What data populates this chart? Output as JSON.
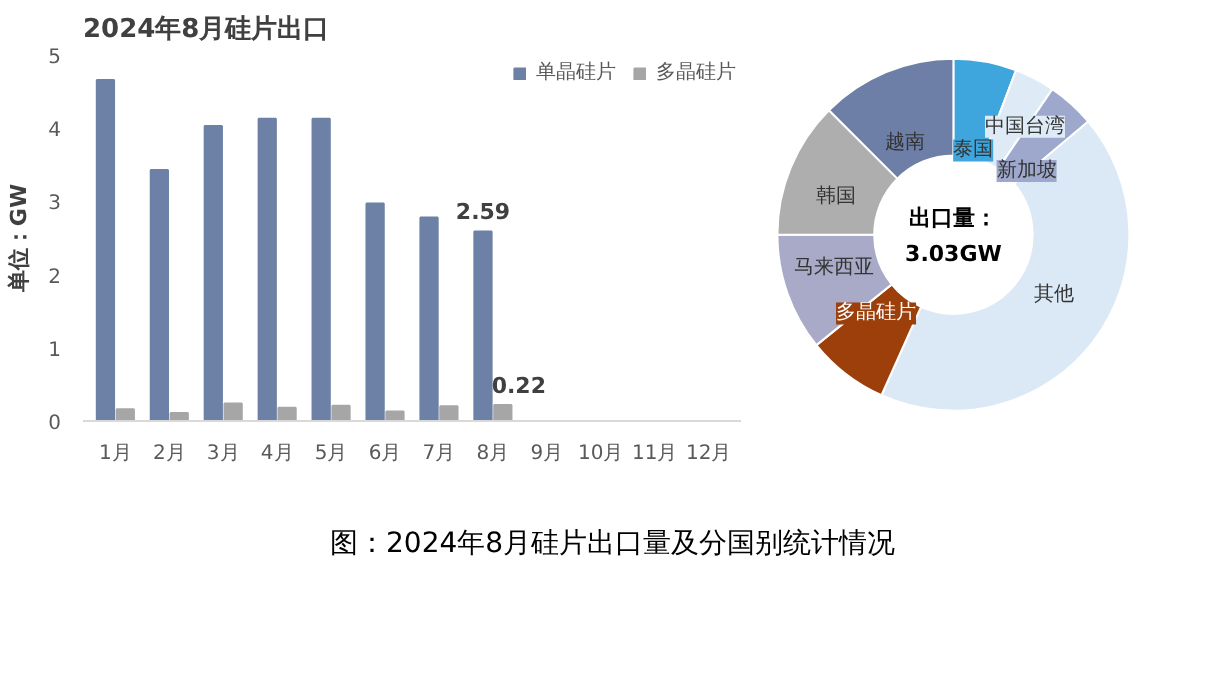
{
  "chart_data": [
    {
      "type": "bar",
      "title": "2024年8月硅片出口",
      "ylabel": "单位：GW",
      "categories": [
        "1月",
        "2月",
        "3月",
        "4月",
        "5月",
        "6月",
        "7月",
        "8月",
        "9月",
        "10月",
        "11月",
        "12月"
      ],
      "series": [
        {
          "name": "单晶硅片",
          "color": "#6d80a6",
          "values": [
            4.66,
            3.43,
            4.03,
            4.13,
            4.13,
            2.97,
            2.78,
            2.59,
            null,
            null,
            null,
            null
          ],
          "value_labels": [
            null,
            null,
            null,
            null,
            null,
            null,
            null,
            "2.59",
            null,
            null,
            null,
            null
          ]
        },
        {
          "name": "多晶硅片",
          "color": "#a6a6a6",
          "values": [
            0.16,
            0.11,
            0.24,
            0.18,
            0.21,
            0.13,
            0.2,
            0.22,
            null,
            null,
            null,
            null
          ],
          "value_labels": [
            null,
            null,
            null,
            null,
            null,
            null,
            null,
            "0.22",
            null,
            null,
            null,
            null
          ]
        }
      ],
      "ylim": [
        0,
        5
      ],
      "yticks": [
        0,
        1,
        2,
        3,
        4,
        5
      ],
      "grid": false,
      "legend": "top right",
      "annotations": [
        "图：2024年8月硅片出口量及分国别统计情况"
      ]
    },
    {
      "type": "donut",
      "categories": [
        "泰国",
        "中国台湾",
        "新加坡",
        "其他",
        "多晶硅片",
        "马来西亚",
        "韩国",
        "越南"
      ],
      "values": [
        5.8,
        3.7,
        4.4,
        42.8,
        7.5,
        10.8,
        12.5,
        12.5
      ],
      "colors": [
        "#3ea6dc",
        "#deebf6",
        "#9ea8cc",
        "#dbe8f5",
        "#9c3f0a",
        "#a9a9c8",
        "#aeaeae",
        "#6d7fa6"
      ],
      "legend": false,
      "annotations": [
        "出口量：",
        "3.03GW"
      ]
    }
  ]
}
